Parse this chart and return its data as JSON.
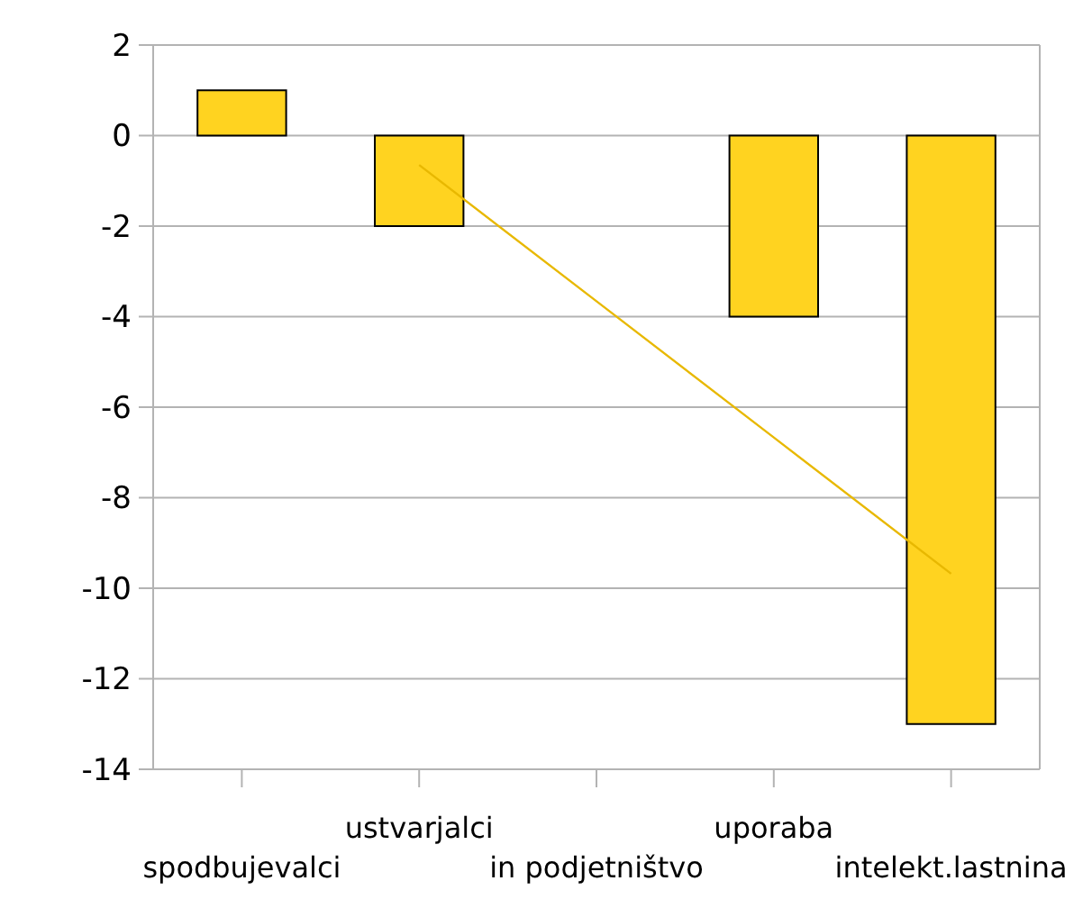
{
  "chart_data": {
    "type": "bar",
    "categories": [
      "spodbujevalci",
      "ustvarjalci",
      "in podjetništvo",
      "uporaba",
      "intelekt.lastnina"
    ],
    "series": [
      {
        "color": "#ffd320",
        "values": [
          1,
          -2,
          null,
          -4,
          -13
        ]
      },
      {
        "type": "line",
        "color": "#e8b800",
        "values": [
          null,
          -0.65,
          -3.66,
          -6.67,
          -9.68
        ]
      }
    ],
    "ylim": [
      -14,
      2
    ],
    "yticks": [
      -14,
      -12,
      -10,
      -8,
      -6,
      -4,
      -2,
      0,
      2
    ],
    "grid": "y"
  }
}
